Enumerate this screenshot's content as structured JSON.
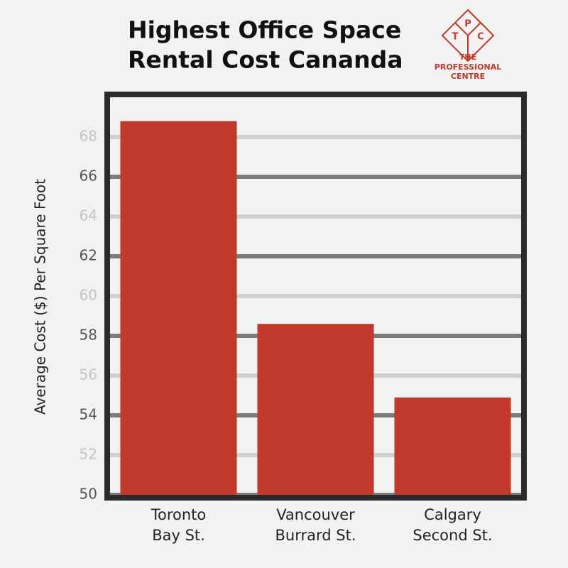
{
  "chart_data": {
    "type": "bar",
    "title": [
      "Highest Office Space",
      "Rental Cost Cananda"
    ],
    "y_label": "Average Cost ($) Per Square Foot",
    "categories": [
      [
        "Toronto",
        "Bay St."
      ],
      [
        "Vancouver",
        "Burrard St."
      ],
      [
        "Calgary",
        "Second St."
      ]
    ],
    "values": [
      68.8,
      58.6,
      54.9
    ],
    "color": "#c1392b",
    "ylim": [
      50,
      70
    ],
    "yticks": [
      50,
      52,
      54,
      56,
      58,
      60,
      62,
      64,
      66,
      68
    ],
    "grid": true
  },
  "logo": {
    "letters": [
      "T",
      "P",
      "C"
    ],
    "lines": [
      "THE",
      "PROFESSIONAL",
      "CENTRE"
    ]
  }
}
